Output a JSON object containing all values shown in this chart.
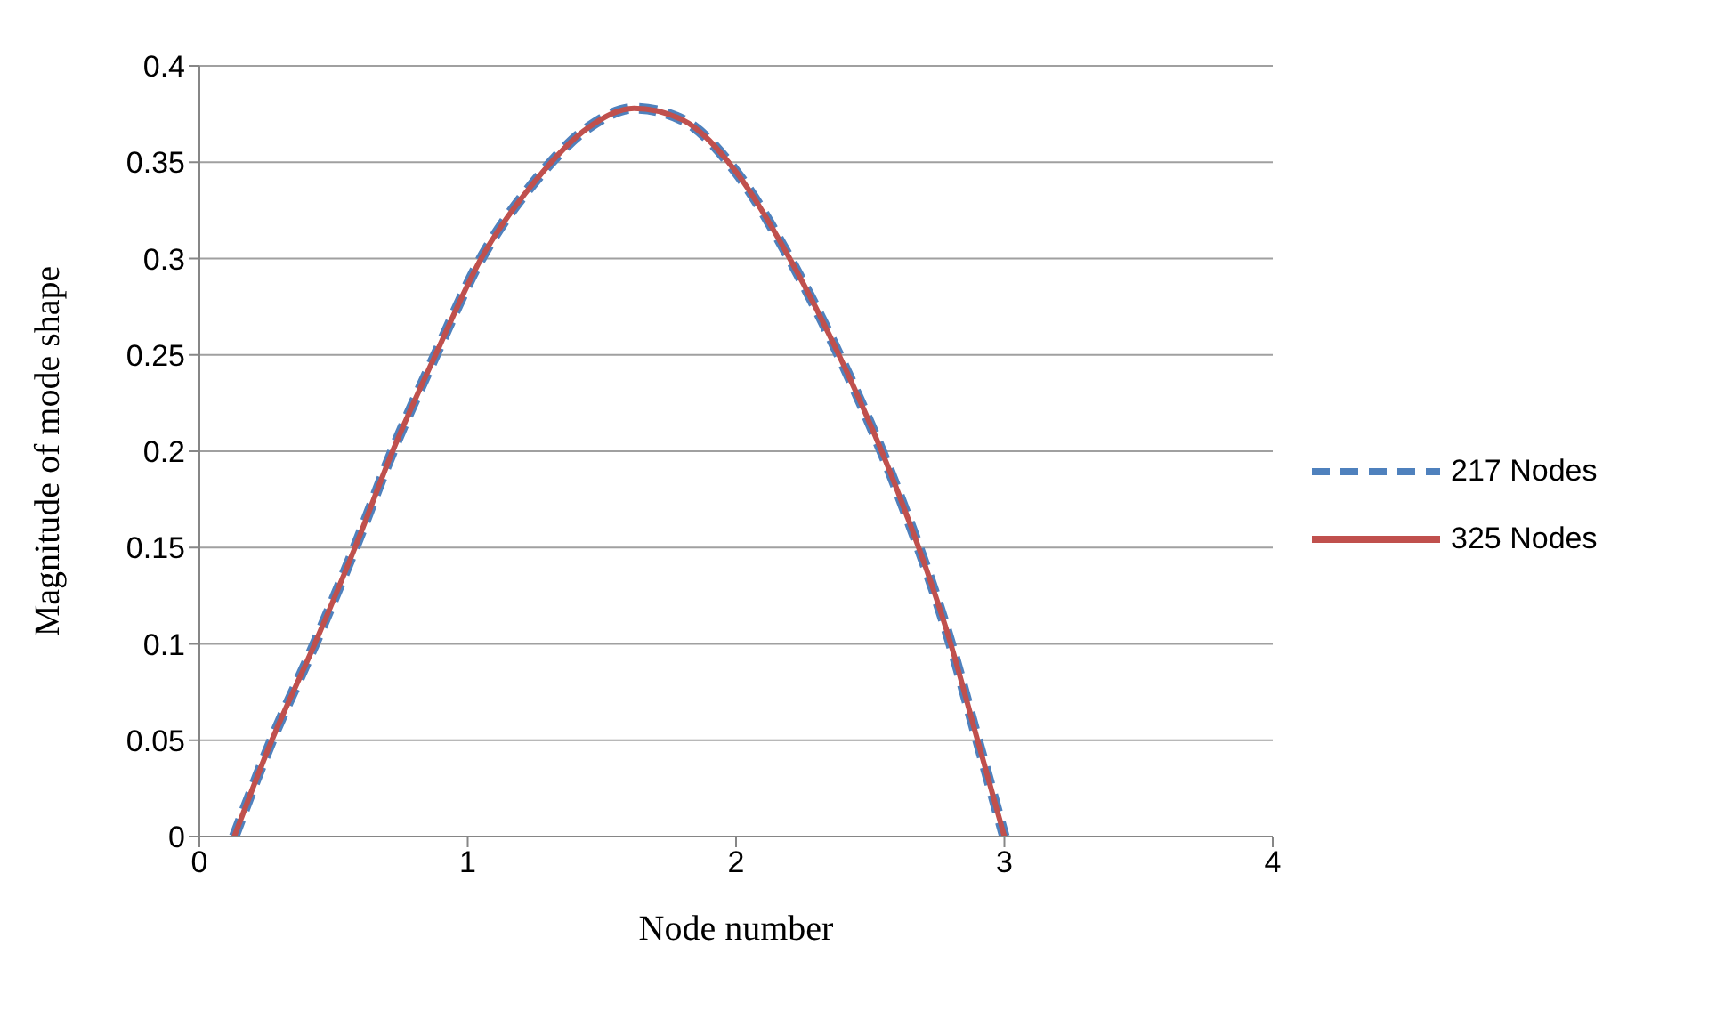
{
  "chart_data": {
    "type": "line",
    "xlabel": "Node number",
    "ylabel": "Magnitude of mode shape",
    "xlim": [
      0,
      4
    ],
    "xticks": [
      0,
      1,
      2,
      3,
      4
    ],
    "ylim": [
      0,
      0.4
    ],
    "yticks": [
      0,
      0.05,
      0.1,
      0.15,
      0.2,
      0.25,
      0.3,
      0.35,
      0.4
    ],
    "grid": "y",
    "legend": "right",
    "marker": "none",
    "series": [
      {
        "name": "217 Nodes",
        "color": "#4f81bd",
        "line_style": "dashed",
        "x": [
          0.13,
          0.27,
          0.43,
          0.58,
          0.72,
          0.88,
          1.05,
          1.25,
          1.45,
          1.62,
          1.8,
          2.0,
          2.2,
          2.4,
          2.6,
          2.8,
          2.9,
          3.0
        ],
        "values": [
          0,
          0.05,
          0.1,
          0.15,
          0.2,
          0.25,
          0.3,
          0.34,
          0.368,
          0.378,
          0.372,
          0.345,
          0.3,
          0.245,
          0.18,
          0.1,
          0.05,
          0
        ]
      },
      {
        "name": "325 Nodes",
        "color": "#c0504d",
        "line_style": "solid",
        "x": [
          0.13,
          0.27,
          0.43,
          0.58,
          0.72,
          0.88,
          1.05,
          1.25,
          1.45,
          1.62,
          1.8,
          2.0,
          2.2,
          2.4,
          2.6,
          2.8,
          2.9,
          3.0
        ],
        "values": [
          0,
          0.05,
          0.1,
          0.15,
          0.2,
          0.25,
          0.3,
          0.34,
          0.368,
          0.378,
          0.372,
          0.345,
          0.3,
          0.245,
          0.18,
          0.1,
          0.05,
          0
        ]
      }
    ]
  }
}
